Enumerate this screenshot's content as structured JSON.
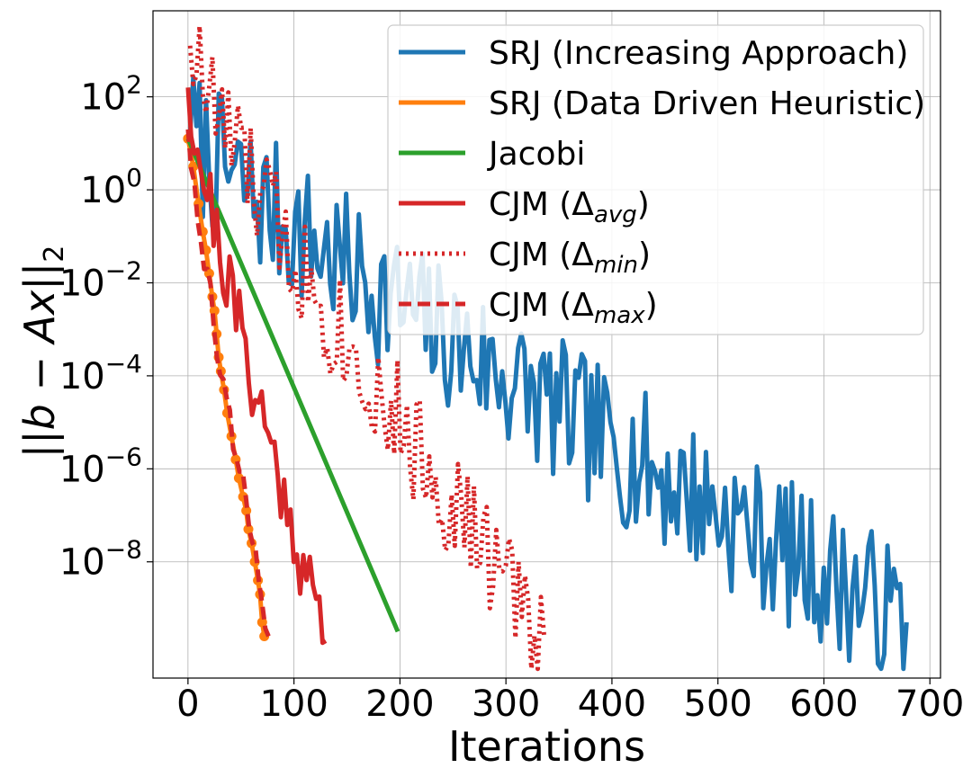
{
  "chart_data": {
    "type": "line",
    "title": "",
    "xlabel": "Iterations",
    "ylabel": "||b − Ax||",
    "ylabel_sub": "2",
    "yscale": "log",
    "xlim": [
      -33,
      710
    ],
    "ylim_log10": [
      -10.5,
      3.85
    ],
    "grid": true,
    "legend_position": "top-right",
    "x_ticks": [
      0,
      100,
      200,
      300,
      400,
      500,
      600,
      700
    ],
    "x_tick_labels": [
      "0",
      "100",
      "200",
      "300",
      "400",
      "500",
      "600",
      "700"
    ],
    "y_ticks_exp": [
      2,
      0,
      -2,
      -4,
      -6,
      -8
    ],
    "y_tick_base": "10",
    "y_tick_exps": [
      "2",
      "0",
      "−2",
      "−4",
      "−6",
      "−8"
    ],
    "series": [
      {
        "name": "SRJ (Increasing Approach)",
        "label_main": "SRJ (Increasing Approach)",
        "label_sub": "",
        "label_close": "",
        "color": "#1f77b4",
        "dash": "solid",
        "markers": false,
        "generator": {
          "kind": "noisy_decay",
          "x0": 2,
          "x1": 678,
          "start_exp": 1.2,
          "end_exp": -9.3,
          "amp": 1.6,
          "seed": 7
        }
      },
      {
        "name": "SRJ (Data Driven Heuristic)",
        "label_main": "SRJ (Data Driven Heuristic)",
        "label_sub": "",
        "label_close": "",
        "color": "#ff7f0e",
        "dash": "solid",
        "markers": true,
        "points": [
          [
            0,
            1.1
          ],
          [
            5,
            0.5
          ],
          [
            10,
            -0.3
          ],
          [
            14,
            -0.9
          ],
          [
            17,
            -1.3
          ],
          [
            20,
            -1.8
          ],
          [
            23,
            -2.3
          ],
          [
            25,
            -2.6
          ],
          [
            27,
            -3.1
          ],
          [
            29,
            -3.6
          ],
          [
            31,
            -3.9
          ],
          [
            34,
            -4.3
          ],
          [
            37,
            -4.8
          ],
          [
            41,
            -5.3
          ],
          [
            45,
            -5.8
          ],
          [
            48,
            -6.2
          ],
          [
            52,
            -6.6
          ],
          [
            55,
            -6.9
          ],
          [
            57,
            -7.3
          ],
          [
            60,
            -7.6
          ],
          [
            63,
            -8.0
          ],
          [
            66,
            -8.4
          ],
          [
            68,
            -8.7
          ],
          [
            70,
            -9.3
          ],
          [
            72,
            -9.6
          ]
        ]
      },
      {
        "name": "Jacobi",
        "label_main": "Jacobi",
        "label_sub": "",
        "label_close": "",
        "color": "#2ca02c",
        "dash": "solid",
        "markers": false,
        "points": [
          [
            0,
            1.1
          ],
          [
            198,
            -9.5
          ]
        ]
      },
      {
        "name": "CJM (Δavg)",
        "label_main": "CJM (Δ",
        "label_sub": "avg",
        "label_close": ")",
        "color": "#d62728",
        "dash": "solid",
        "markers": false,
        "generator": {
          "kind": "noisy_decay",
          "x0": 0,
          "x1": 130,
          "start_exp": 2.2,
          "end_exp": -9.7,
          "amp": 0.9,
          "seed": 21
        }
      },
      {
        "name": "CJM (Δmin)",
        "label_main": "CJM (Δ",
        "label_sub": "min",
        "label_close": ")",
        "color": "#d62728",
        "dash": "dotted",
        "markers": false,
        "generator": {
          "kind": "noisy_decay",
          "x0": 2,
          "x1": 336,
          "start_exp": 3.1,
          "end_exp": -9.6,
          "amp": 1.3,
          "seed": 33
        }
      },
      {
        "name": "CJM (Δmax)",
        "label_main": "CJM (Δ",
        "label_sub": "max",
        "label_close": ")",
        "color": "#d62728",
        "dash": "dashed",
        "markers": false,
        "generator": {
          "kind": "noisy_decay",
          "x0": 0,
          "x1": 76,
          "start_exp": 1.3,
          "end_exp": -9.6,
          "amp": 0.5,
          "seed": 45
        }
      }
    ]
  }
}
